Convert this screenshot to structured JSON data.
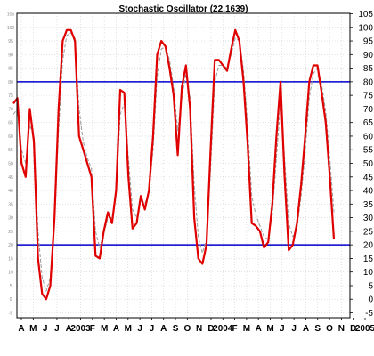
{
  "chart_data": {
    "type": "line",
    "title": "Stochastic Oscillator (22.1639)",
    "ylim": [
      -10,
      105
    ],
    "grid": true,
    "y_ticks_right": [
      -5,
      0,
      5,
      10,
      15,
      20,
      25,
      30,
      35,
      40,
      45,
      50,
      55,
      60,
      65,
      70,
      75,
      80,
      85,
      90,
      95,
      100,
      105
    ],
    "y_ticks_left_faint": [
      -5,
      0,
      5,
      10,
      15,
      20,
      25,
      30,
      35,
      40,
      45,
      50,
      55,
      60,
      65,
      70,
      75,
      80,
      85,
      90,
      95,
      100,
      105
    ],
    "x_labels": [
      "A",
      "M",
      "J",
      "J",
      "A",
      "2003",
      "F",
      "M",
      "A",
      "M",
      "J",
      "J",
      "A",
      "S",
      "O",
      "N",
      "D",
      "2004",
      "F",
      "M",
      "A",
      "M",
      "J",
      "J",
      "A",
      "S",
      "O",
      "N",
      "D",
      "2005"
    ],
    "reference_lines": [
      80,
      20
    ],
    "series": [
      {
        "values": [
          72,
          74,
          50,
          45,
          70,
          58,
          15,
          2,
          0,
          5,
          30,
          70,
          95,
          99,
          99,
          95,
          60,
          55,
          50,
          45,
          16,
          15,
          25,
          32,
          28,
          40,
          77,
          76,
          45,
          26,
          28,
          38,
          33,
          40,
          60,
          90,
          95,
          93,
          85,
          75,
          53,
          78,
          86,
          70,
          30,
          15,
          13,
          20,
          55,
          88,
          88,
          86,
          84,
          92,
          99,
          95,
          80,
          57,
          28,
          27,
          25,
          19,
          21,
          35,
          60,
          80,
          45,
          18,
          20,
          28,
          42,
          60,
          80,
          86,
          86,
          76,
          65,
          45,
          22
        ]
      },
      {
        "values": [
          68,
          70,
          55,
          50,
          64,
          60,
          25,
          8,
          3,
          8,
          28,
          62,
          88,
          97,
          98,
          96,
          70,
          58,
          52,
          48,
          25,
          19,
          24,
          30,
          30,
          38,
          68,
          72,
          52,
          33,
          30,
          36,
          35,
          40,
          55,
          82,
          92,
          93,
          88,
          78,
          62,
          74,
          83,
          74,
          42,
          23,
          17,
          22,
          48,
          80,
          86,
          86,
          85,
          90,
          96,
          95,
          84,
          64,
          38,
          31,
          27,
          23,
          22,
          31,
          52,
          72,
          52,
          28,
          23,
          26,
          38,
          54,
          74,
          83,
          85,
          79,
          69,
          52,
          32
        ]
      }
    ]
  },
  "colors": {
    "main_line": "#e00000",
    "signal_line": "#9a9a9a",
    "reference_line": "#0000cc",
    "grid": "#d0d0d0",
    "frame": "#000000"
  }
}
